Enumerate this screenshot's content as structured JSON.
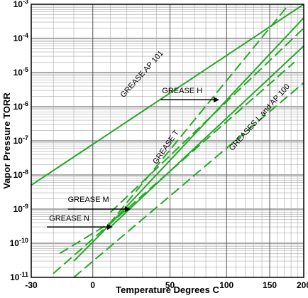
{
  "chart_data": {
    "type": "line",
    "xlabel": "Temperature Degrees C",
    "ylabel": "Vapor Pressure TORR",
    "x_scale": "reciprocal-absolute-temperature",
    "y_scale": "log",
    "xlim": [
      -30,
      200
    ],
    "ylim": [
      1e-11,
      0.001
    ],
    "grid": true,
    "x_ticks": [
      {
        "value": -30,
        "label": "-30"
      },
      {
        "value": 0,
        "label": "0"
      },
      {
        "value": 50,
        "label": "50"
      },
      {
        "value": 100,
        "label": "100"
      },
      {
        "value": 150,
        "label": "150"
      },
      {
        "value": 200,
        "label": "200"
      }
    ],
    "y_ticks": [
      {
        "exp": -3,
        "label": "10-3",
        "mantissa": "10",
        "power": "-3"
      },
      {
        "exp": -4,
        "label": "10-4",
        "mantissa": "10",
        "power": "-4"
      },
      {
        "exp": -5,
        "label": "10-5",
        "mantissa": "10",
        "power": "-5"
      },
      {
        "exp": -6,
        "label": "10-6",
        "mantissa": "10",
        "power": "-6"
      },
      {
        "exp": -7,
        "label": "10-7",
        "mantissa": "10",
        "power": "-7"
      },
      {
        "exp": -8,
        "label": "10-8",
        "mantissa": "10",
        "power": "-8"
      },
      {
        "exp": -9,
        "label": "10-9",
        "mantissa": "10",
        "power": "-9"
      },
      {
        "exp": -10,
        "label": "10-10",
        "mantissa": "10",
        "power": "-10"
      },
      {
        "exp": -11,
        "label": "10-11",
        "mantissa": "10",
        "power": "-11"
      }
    ],
    "series": [
      {
        "id": "ap101",
        "name": "GREASE AP 101",
        "style": "solid",
        "color": "#22aa22",
        "points": [
          {
            "x": -30,
            "y": 5e-09
          },
          {
            "x": 200,
            "y": 0.001
          }
        ]
      },
      {
        "id": "h_upper",
        "name": "GREASE H",
        "style": "dashed",
        "color": "#22aa22",
        "points": [
          {
            "x": -17,
            "y": 5e-11
          },
          {
            "x": 10,
            "y": 4e-10
          },
          {
            "x": 177,
            "y": 0.001
          }
        ]
      },
      {
        "id": "t_upper",
        "name": "GREASE T",
        "style": "solid",
        "color": "#22aa22",
        "points": [
          {
            "x": -10,
            "y": 3e-11
          },
          {
            "x": 5,
            "y": 2e-10
          },
          {
            "x": 200,
            "y": 0.0004
          }
        ]
      },
      {
        "id": "h_lower",
        "name": "GREASE H",
        "style": "dashed",
        "color": "#22aa22",
        "points": [
          {
            "x": 10,
            "y": 8e-10
          },
          {
            "x": 200,
            "y": 0.0002
          }
        ]
      },
      {
        "id": "m_line",
        "name": "GREASE M",
        "style": "solid",
        "color": "#22aa22",
        "points": [
          {
            "x": 10,
            "y": 3e-10
          },
          {
            "x": 200,
            "y": 6e-05
          }
        ]
      },
      {
        "id": "n_line",
        "name": "GREASE N",
        "style": "dashed",
        "color": "#22aa22",
        "points": [
          {
            "x": -20,
            "y": 1.3e-11
          },
          {
            "x": 185,
            "y": 2e-05
          }
        ]
      },
      {
        "id": "l_line",
        "name": "GREASES L and AP 100",
        "style": "dashed",
        "color": "#22aa22",
        "points": [
          {
            "x": -10,
            "y": 1e-11
          },
          {
            "x": 200,
            "y": 5e-06
          }
        ]
      }
    ],
    "annotations": [
      {
        "id": "ann_ap101",
        "text": "GREASE AP 101",
        "x": 18,
        "y": 1.8e-06,
        "rotate": -48,
        "arrow": false
      },
      {
        "id": "ann_h",
        "text": "GREASE H",
        "x": 44,
        "y": 2.5e-06,
        "rotate": 0,
        "arrow": true,
        "arrow_x1": 43,
        "arrow_y1": 1.6e-06,
        "arrow_x2": 92,
        "arrow_y2": 1.6e-06
      },
      {
        "id": "ann_t",
        "text": "GREASE T",
        "x": 40,
        "y": 2e-08,
        "rotate": -55,
        "arrow": false
      },
      {
        "id": "ann_m",
        "text": "GREASE M",
        "x": -13,
        "y": 1.6e-09,
        "rotate": 0,
        "arrow": true,
        "arrow_x1": -13,
        "arrow_y1": 1e-09,
        "arrow_x2": 22,
        "arrow_y2": 1e-09
      },
      {
        "id": "ann_n",
        "text": "GREASE N",
        "x": -22,
        "y": 4.5e-10,
        "rotate": 0,
        "arrow": true,
        "arrow_x1": -23,
        "arrow_y1": 3e-10,
        "arrow_x2": 11,
        "arrow_y2": 3e-10
      },
      {
        "id": "ann_l",
        "text": "GREASES L and AP 100",
        "x": 106,
        "y": 5e-08,
        "rotate": -48,
        "arrow": false
      }
    ]
  }
}
